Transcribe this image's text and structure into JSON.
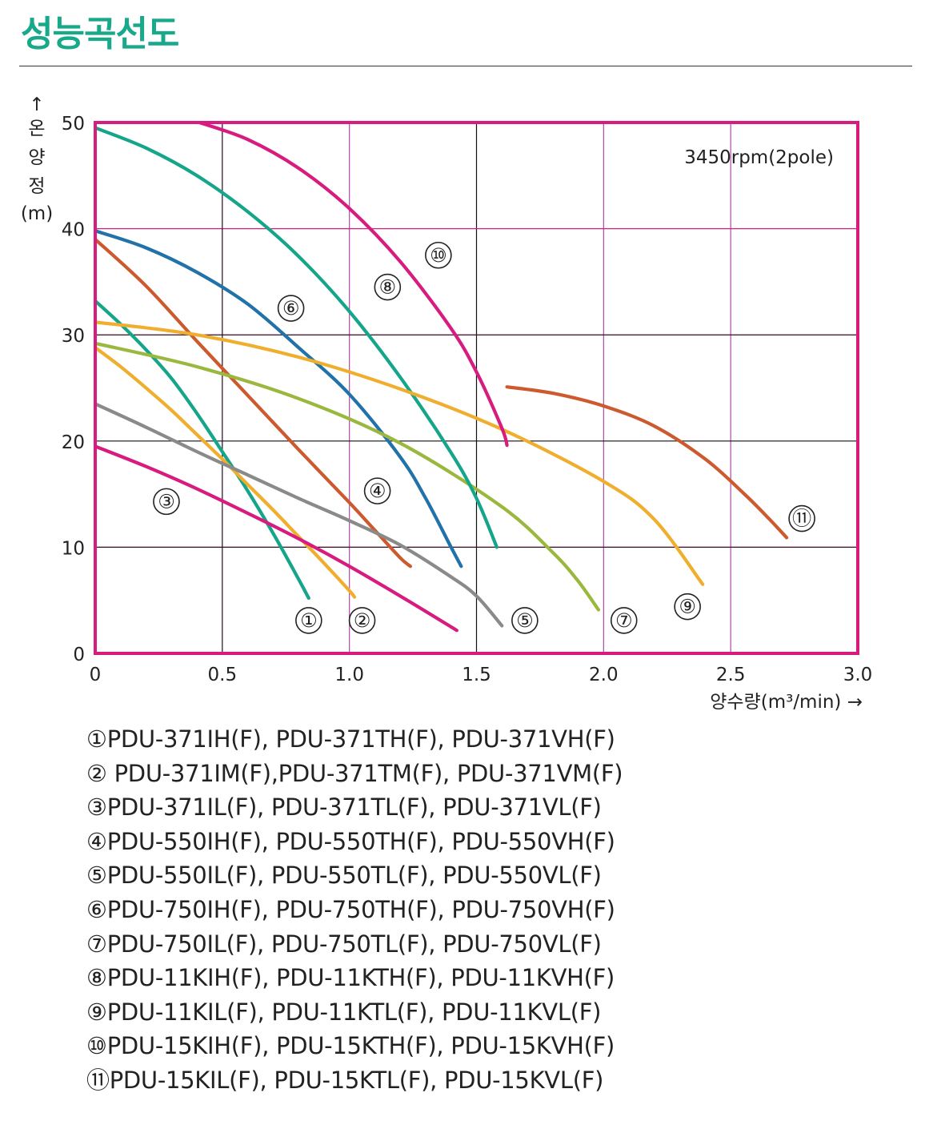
{
  "page": {
    "title": "성능곡선도"
  },
  "chart_data": {
    "type": "line",
    "title": "",
    "annotation": "3450rpm(2pole)",
    "xlabel": "양수량(m³/min) →",
    "ylabel_arrow": "↑",
    "ylabel_chars": [
      "온",
      "양",
      "정"
    ],
    "ylabel_unit": "(m)",
    "xlim": [
      0,
      3.0
    ],
    "ylim": [
      0,
      50
    ],
    "xticks": [
      0,
      0.5,
      1.0,
      1.5,
      2.0,
      2.5,
      3.0
    ],
    "xtick_labels": [
      "0",
      "0.5",
      "1.0",
      "1.5",
      "2.0",
      "2.5",
      "3.0"
    ],
    "yticks": [
      0,
      10,
      20,
      30,
      40,
      50
    ],
    "ytick_labels": [
      "0",
      "10",
      "20",
      "30",
      "40",
      "50"
    ],
    "grid": true,
    "colors": {
      "frame": "#d81b7e",
      "grid_v": "#b04aa8",
      "grid_h": "#d81b7e",
      "grid_center": "#111111"
    },
    "series": [
      {
        "name": "①",
        "color": "#15a58a",
        "marker": [
          0.84,
          3.1
        ],
        "x": [
          0,
          0.1,
          0.2,
          0.3,
          0.4,
          0.5,
          0.6,
          0.7,
          0.8,
          0.84
        ],
        "y": [
          33.2,
          31.0,
          28.6,
          25.9,
          22.6,
          19.0,
          15.3,
          11.3,
          7.0,
          5.2
        ]
      },
      {
        "name": "②",
        "color": "#f0ae2e",
        "marker": [
          1.05,
          3.1
        ],
        "x": [
          0,
          0.1,
          0.2,
          0.3,
          0.4,
          0.5,
          0.6,
          0.7,
          0.8,
          0.9,
          1.0,
          1.02
        ],
        "y": [
          28.8,
          27.0,
          25.0,
          22.9,
          20.6,
          18.3,
          15.9,
          13.5,
          11.0,
          8.5,
          5.9,
          5.3
        ]
      },
      {
        "name": "③",
        "color": "#d81b7e",
        "marker": [
          0.28,
          14.3
        ],
        "x": [
          0,
          0.2,
          0.4,
          0.6,
          0.8,
          1.0,
          1.2,
          1.4,
          1.42
        ],
        "y": [
          19.5,
          17.6,
          15.5,
          13.2,
          10.8,
          8.2,
          5.4,
          2.5,
          2.2
        ]
      },
      {
        "name": "④",
        "color": "#cc5a2e",
        "marker": [
          1.11,
          15.3
        ],
        "x": [
          0,
          0.2,
          0.4,
          0.6,
          0.8,
          1.0,
          1.1,
          1.2,
          1.24
        ],
        "y": [
          39.0,
          34.6,
          29.4,
          24.3,
          19.2,
          14.2,
          11.6,
          9.0,
          8.2
        ]
      },
      {
        "name": "⑤",
        "color": "#8a8a8a",
        "marker": [
          1.69,
          3.1
        ],
        "x": [
          0,
          0.2,
          0.4,
          0.6,
          0.8,
          1.0,
          1.2,
          1.4,
          1.5,
          1.6
        ],
        "y": [
          23.5,
          21.3,
          19.0,
          16.8,
          14.6,
          12.5,
          10.2,
          7.2,
          5.4,
          2.6
        ]
      },
      {
        "name": "⑥",
        "color": "#2272aa",
        "marker": [
          0.77,
          32.5
        ],
        "x": [
          0,
          0.2,
          0.4,
          0.6,
          0.8,
          1.0,
          1.2,
          1.3,
          1.4,
          1.44
        ],
        "y": [
          39.8,
          38.2,
          35.9,
          32.9,
          28.8,
          24.4,
          18.5,
          14.6,
          10.0,
          8.2
        ]
      },
      {
        "name": "⑦",
        "color": "#9ab83e",
        "marker": [
          2.08,
          3.1
        ],
        "x": [
          0,
          0.4,
          0.8,
          1.2,
          1.6,
          1.8,
          1.9,
          1.98
        ],
        "y": [
          29.2,
          27.0,
          24.0,
          19.8,
          13.8,
          9.5,
          6.8,
          4.1
        ]
      },
      {
        "name": "⑧",
        "color": "#15a58a",
        "marker": [
          1.15,
          34.5
        ],
        "x": [
          0,
          0.2,
          0.4,
          0.6,
          0.8,
          1.0,
          1.2,
          1.4,
          1.5,
          1.58
        ],
        "y": [
          49.5,
          47.6,
          45.0,
          41.6,
          37.4,
          32.2,
          26.0,
          18.9,
          14.6,
          10.0
        ]
      },
      {
        "name": "⑨",
        "color": "#f0ae2e",
        "marker": [
          2.33,
          4.4
        ],
        "x": [
          0,
          0.4,
          0.8,
          1.2,
          1.6,
          2.0,
          2.2,
          2.39
        ],
        "y": [
          31.2,
          30.0,
          27.9,
          24.9,
          21.1,
          16.2,
          12.6,
          6.5
        ]
      },
      {
        "name": "⑩",
        "color": "#d81b7e",
        "marker": [
          1.35,
          37.5
        ],
        "x": [
          0.41,
          0.6,
          0.8,
          1.0,
          1.2,
          1.4,
          1.5,
          1.6,
          1.62
        ],
        "y": [
          50.0,
          48.4,
          45.7,
          41.9,
          36.9,
          30.6,
          26.5,
          21.2,
          19.6
        ]
      },
      {
        "name": "⑪",
        "color": "#cc5a2e",
        "marker": [
          2.78,
          12.7
        ],
        "x": [
          1.62,
          1.8,
          2.0,
          2.2,
          2.4,
          2.55,
          2.65,
          2.72
        ],
        "y": [
          25.1,
          24.5,
          23.3,
          21.4,
          18.3,
          15.1,
          12.7,
          10.9
        ]
      }
    ]
  },
  "legend": [
    "①PDU-371IH(F), PDU-371TH(F), PDU-371VH(F)",
    "② PDU-371IM(F),PDU-371TM(F), PDU-371VM(F)",
    "③PDU-371IL(F), PDU-371TL(F), PDU-371VL(F)",
    "④PDU-550IH(F), PDU-550TH(F), PDU-550VH(F)",
    "⑤PDU-550IL(F), PDU-550TL(F), PDU-550VL(F)",
    "⑥PDU-750IH(F), PDU-750TH(F), PDU-750VH(F)",
    "⑦PDU-750IL(F), PDU-750TL(F), PDU-750VL(F)",
    "⑧PDU-11KIH(F), PDU-11KTH(F), PDU-11KVH(F)",
    "⑨PDU-11KIL(F), PDU-11KTL(F), PDU-11KVL(F)",
    "⑩PDU-15KIH(F), PDU-15KTH(F), PDU-15KVH(F)",
    "⑪PDU-15KIL(F), PDU-15KTL(F), PDU-15KVL(F)"
  ]
}
